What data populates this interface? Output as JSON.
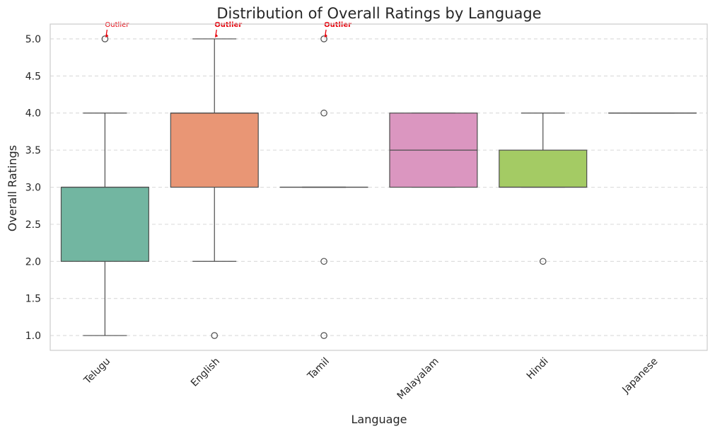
{
  "chart_data": {
    "type": "box",
    "title": "Distribution of Overall Ratings by Language",
    "xlabel": "Language",
    "ylabel": "Overall Ratings",
    "ylim": [
      0.8,
      5.2
    ],
    "y_ticks": [
      "1.0",
      "1.5",
      "2.0",
      "2.5",
      "3.0",
      "3.5",
      "4.0",
      "4.5",
      "5.0"
    ],
    "grid": "horizontal dashed",
    "categories": [
      "Telugu",
      "English",
      "Tamil",
      "Malayalam",
      "Hindi",
      "Japanese"
    ],
    "boxes": [
      {
        "category": "Telugu",
        "whisker_low": 1.0,
        "q1": 2.0,
        "median": 3.0,
        "q3": 3.0,
        "whisker_high": 4.0,
        "outliers": [
          5.0
        ],
        "color": "#72b6a1"
      },
      {
        "category": "English",
        "whisker_low": 2.0,
        "q1": 3.0,
        "median": 4.0,
        "q3": 4.0,
        "whisker_high": 5.0,
        "outliers": [
          1.0
        ],
        "color": "#e99675"
      },
      {
        "category": "Tamil",
        "whisker_low": 3.0,
        "q1": 3.0,
        "median": 3.0,
        "q3": 3.0,
        "whisker_high": 3.0,
        "outliers": [
          1.0,
          2.0,
          4.0,
          5.0
        ],
        "color": "#95a3c3"
      },
      {
        "category": "Malayalam",
        "whisker_low": 3.0,
        "q1": 3.0,
        "median": 3.5,
        "q3": 4.0,
        "whisker_high": 4.0,
        "outliers": [],
        "color": "#db96c0"
      },
      {
        "category": "Hindi",
        "whisker_low": 3.0,
        "q1": 3.0,
        "median": 3.0,
        "q3": 3.5,
        "whisker_high": 4.0,
        "outliers": [
          2.0
        ],
        "color": "#a4cb64"
      },
      {
        "category": "Japanese",
        "whisker_low": 4.0,
        "q1": 4.0,
        "median": 4.0,
        "q3": 4.0,
        "whisker_high": 4.0,
        "outliers": [],
        "color": "#ffd92f"
      }
    ],
    "annotations": [
      {
        "category": "Telugu",
        "y": 5.0,
        "text": "Outlier",
        "bold": false
      },
      {
        "category": "English",
        "y": 5.0,
        "text": "Outlier",
        "bold": true
      },
      {
        "category": "Tamil",
        "y": 5.0,
        "text": "Outlier",
        "bold": true
      }
    ],
    "annotation_color": "#e8000b"
  }
}
